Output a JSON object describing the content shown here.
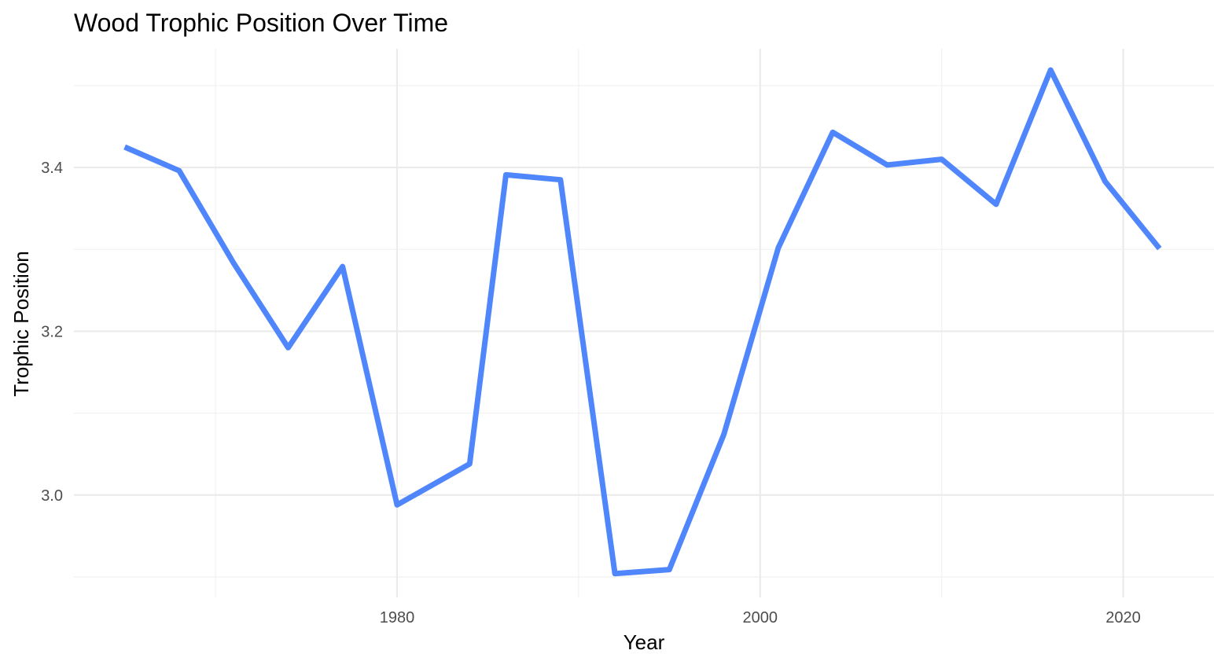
{
  "chart_data": {
    "type": "line",
    "title": "Wood Trophic Position Over Time",
    "xlabel": "Year",
    "ylabel": "Trophic Position",
    "xlim": [
      1962.2,
      2025
    ],
    "ylim": [
      2.875,
      3.545
    ],
    "x_major_ticks": [
      1980,
      2000,
      2020
    ],
    "x_minor_ticks": [
      1970,
      1990,
      2010
    ],
    "y_major_ticks": [
      3.0,
      3.2,
      3.4
    ],
    "y_minor_ticks": [
      2.9,
      3.1,
      3.3,
      3.5
    ],
    "grid": true,
    "legend": "none",
    "line_color": "#5086fb",
    "series": [
      {
        "x": [
          1965,
          1968,
          1971,
          1974,
          1977,
          1980,
          1984,
          1986,
          1989,
          1992,
          1995,
          1998,
          2001,
          2004,
          2007,
          2010,
          2013,
          2016,
          2019,
          2022
        ],
        "y": [
          3.425,
          3.396,
          3.283,
          3.18,
          3.279,
          2.988,
          3.038,
          3.391,
          3.385,
          2.904,
          2.909,
          3.074,
          3.302,
          3.443,
          3.403,
          3.41,
          3.355,
          3.519,
          3.383,
          3.301
        ]
      }
    ]
  }
}
